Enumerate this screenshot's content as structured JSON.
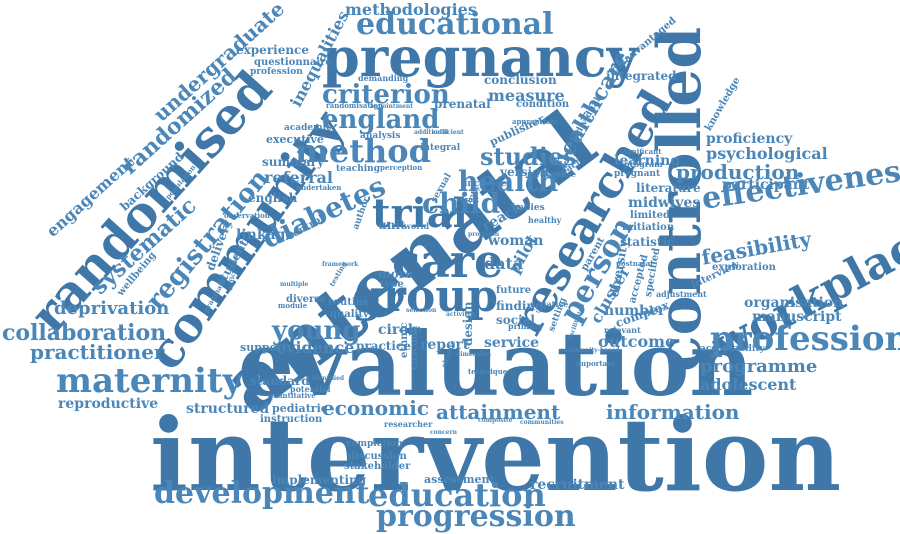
{
  "colors": {
    "ink": "#4a86b8",
    "ink_dark": "#3f77a8",
    "background": "#ffffff"
  },
  "words": [
    "intervention",
    "evaluation",
    "antenatal",
    "controlled",
    "randomised",
    "community",
    "pregnancy",
    "workplace",
    "researched",
    "professional",
    "development",
    "education",
    "progression",
    "group",
    "care",
    "trial",
    "maternity",
    "effectiveness",
    "educational",
    "criterion",
    "england",
    "method",
    "health",
    "studies",
    "child",
    "registration",
    "diabetes",
    "young",
    "person",
    "collaboration",
    "practitioner",
    "deprivation",
    "systematic",
    "randomized",
    "undergraduate",
    "engagement",
    "inequalities",
    "methodologies",
    "healthcare",
    "production",
    "psychological",
    "proficiency",
    "participant",
    "feasibility",
    "organisation",
    "manuscript",
    "programme",
    "adolescent",
    "economic",
    "attainment",
    "information",
    "recruitment",
    "evidence",
    "outcome",
    "number",
    "measure",
    "data",
    "woman",
    "reach",
    "version",
    "cluster",
    "diversity",
    "midwives",
    "learning",
    "referral",
    "summary",
    "linkage",
    "reproductive",
    "structured",
    "implementing",
    "assessment",
    "stakeholder",
    "discussion",
    "completion",
    "standard",
    "pediatric",
    "instruction",
    "delivery",
    "student",
    "support",
    "quality",
    "routine",
    "practice",
    "circle",
    "report",
    "service",
    "design",
    "ethnic",
    "cascade",
    "pilot",
    "unit",
    "more",
    "type",
    "future",
    "finding",
    "social",
    "complex",
    "specified",
    "accepted",
    "statistic",
    "parent",
    "initiation",
    "relevant",
    "limited",
    "literature",
    "pregnant",
    "program",
    "exploration",
    "interview",
    "acceptability",
    "knowledge",
    "integrated",
    "disadvantaged",
    "conclusion",
    "condition",
    "publisher",
    "prenatal",
    "demanding",
    "experience",
    "questionnaire",
    "profession",
    "executive",
    "academic",
    "background",
    "english",
    "wellbeing",
    "teaching",
    "analysis",
    "integral",
    "increase",
    "impact",
    "individual",
    "response",
    "babies",
    "healthy",
    "sexual",
    "primary",
    "negative",
    "setting",
    "diverse",
    "control",
    "author",
    "world",
    "survey",
    "result",
    "adjustment",
    "appropriate",
    "significant",
    "postnatal",
    "potential",
    "quantitative",
    "researcher",
    "randomisation",
    "population",
    "observation",
    "difficulties",
    "module",
    "pragmatic",
    "undertaken",
    "appointment",
    "additional",
    "sufficient",
    "technique",
    "perception",
    "framework",
    "multiple",
    "provision",
    "community-based",
    "important",
    "composite",
    "communities",
    "concern",
    "dimension",
    "identified",
    "facilitation",
    "selection",
    "activity",
    "change",
    "testing"
  ]
}
